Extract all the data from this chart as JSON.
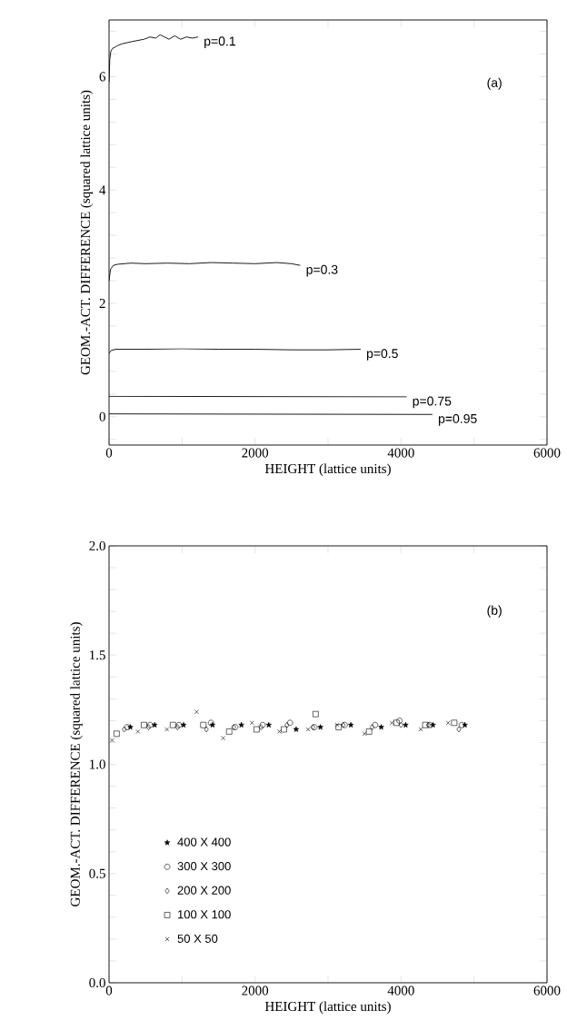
{
  "chart_data": [
    {
      "type": "line",
      "xlabel": "HEIGHT (lattice units)",
      "ylabel": "GEOM.-ACT. DIFFERENCE (squared lattice units)",
      "xlim": [
        0,
        6000
      ],
      "ylim": [
        -0.5,
        7
      ],
      "xticks": [
        0,
        {
          "value": 1000,
          "label": null
        },
        2000,
        {
          "value": 3000,
          "label": null
        },
        4000,
        {
          "value": 5000,
          "label": null
        },
        6000
      ],
      "yticks": [
        {
          "value": -0.4,
          "label": null
        },
        0,
        {
          "value": 0.4,
          "label": null
        },
        {
          "value": 0.8,
          "label": null
        },
        {
          "value": 1.2,
          "label": null
        },
        {
          "value": 1.6,
          "label": null
        },
        2,
        {
          "value": 2.4,
          "label": null
        },
        {
          "value": 2.8,
          "label": null
        },
        {
          "value": 3.2,
          "label": null
        },
        {
          "value": 3.6,
          "label": null
        },
        4,
        {
          "value": 4.4,
          "label": null
        },
        {
          "value": 4.8,
          "label": null
        },
        {
          "value": 5.2,
          "label": null
        },
        {
          "value": 5.6,
          "label": null
        },
        6,
        {
          "value": 6.4,
          "label": null
        },
        {
          "value": 6.8,
          "label": null
        }
      ],
      "annotations": [
        "(a)"
      ],
      "series": [
        {
          "name": "p=0.1",
          "color": "#000000",
          "x": [
            0,
            10,
            25,
            50,
            80,
            120,
            180,
            250,
            320,
            400,
            480,
            560,
            640,
            700,
            760,
            820,
            900,
            980,
            1060,
            1140,
            1220
          ],
          "values": [
            5.9,
            6.3,
            6.45,
            6.5,
            6.52,
            6.55,
            6.58,
            6.6,
            6.62,
            6.64,
            6.66,
            6.7,
            6.68,
            6.74,
            6.7,
            6.66,
            6.72,
            6.66,
            6.7,
            6.68,
            6.7
          ]
        },
        {
          "name": "p=0.3",
          "color": "#000000",
          "x": [
            0,
            20,
            60,
            120,
            300,
            500,
            800,
            1100,
            1400,
            1700,
            2000,
            2300,
            2500,
            2620
          ],
          "values": [
            2.4,
            2.6,
            2.67,
            2.69,
            2.71,
            2.7,
            2.71,
            2.7,
            2.72,
            2.71,
            2.7,
            2.72,
            2.7,
            2.67
          ]
        },
        {
          "name": "p=0.5",
          "color": "#000000",
          "x": [
            0,
            30,
            100,
            500,
            1000,
            1500,
            2000,
            2500,
            3000,
            3446
          ],
          "values": [
            1.12,
            1.17,
            1.19,
            1.19,
            1.2,
            1.19,
            1.19,
            1.18,
            1.18,
            1.19
          ]
        },
        {
          "name": "p=0.75",
          "color": "#000000",
          "x": [
            0,
            4077
          ],
          "values": [
            0.36,
            0.35
          ]
        },
        {
          "name": "p=0.95",
          "color": "#000000",
          "x": [
            0,
            4430
          ],
          "values": [
            0.05,
            0.04
          ]
        }
      ]
    },
    {
      "type": "scatter",
      "xlabel": "HEIGHT (lattice units)",
      "ylabel": "GEOM.-ACT. DIFFERENCE (squared lattice units)",
      "xlim": [
        0,
        6000
      ],
      "ylim": [
        0,
        2
      ],
      "legend": "bottom left",
      "xticks": [
        0,
        {
          "value": 1000,
          "label": null
        },
        2000,
        {
          "value": 3000,
          "label": null
        },
        4000,
        {
          "value": 5000,
          "label": null
        },
        6000
      ],
      "yticks": [
        {
          "value": 0,
          "label": "0.0"
        },
        {
          "value": 0.1,
          "label": null
        },
        {
          "value": 0.2,
          "label": null
        },
        {
          "value": 0.3,
          "label": null
        },
        {
          "value": 0.4,
          "label": null
        },
        0.5,
        {
          "value": 0.6,
          "label": null
        },
        {
          "value": 0.7,
          "label": null
        },
        {
          "value": 0.8,
          "label": null
        },
        {
          "value": 0.9,
          "label": null
        },
        {
          "value": 1,
          "label": "1.0"
        },
        {
          "value": 1.1,
          "label": null
        },
        {
          "value": 1.2,
          "label": null
        },
        {
          "value": 1.3,
          "label": null
        },
        {
          "value": 1.4,
          "label": null
        },
        1.5,
        {
          "value": 1.6,
          "label": null
        },
        {
          "value": 1.7,
          "label": null
        },
        {
          "value": 1.8,
          "label": null
        },
        {
          "value": 1.9,
          "label": null
        },
        {
          "value": 2,
          "label": "2.0"
        }
      ],
      "annotations": [
        "(b)"
      ],
      "series": [
        {
          "name": "400 X 400",
          "color": "#000000",
          "marker": "star",
          "x": [
            292,
            625,
            1021,
            1417,
            1813,
            2188,
            2563,
            2896,
            3313,
            3729,
            4063,
            4438,
            4875
          ],
          "values": [
            1.17,
            1.18,
            1.18,
            1.18,
            1.18,
            1.18,
            1.16,
            1.17,
            1.18,
            1.17,
            1.18,
            1.18,
            1.18
          ]
        },
        {
          "name": "300 X 300",
          "color": "#000000",
          "marker": "circle",
          "x": [
            250,
            563,
            958,
            1396,
            1729,
            2104,
            2479,
            2813,
            3229,
            3646,
            3979,
            4396,
            4833
          ],
          "values": [
            1.17,
            1.18,
            1.18,
            1.19,
            1.17,
            1.18,
            1.19,
            1.17,
            1.18,
            1.18,
            1.2,
            1.18,
            1.18
          ]
        },
        {
          "name": "200 X 200",
          "color": "#000000",
          "marker": "diamond",
          "x": [
            208,
            542,
            938,
            1333,
            1708,
            2083,
            2438,
            2792,
            3208,
            3604,
            4000,
            4375,
            4792
          ],
          "values": [
            1.16,
            1.17,
            1.17,
            1.16,
            1.17,
            1.17,
            1.18,
            1.17,
            1.18,
            1.17,
            1.18,
            1.18,
            1.16
          ]
        },
        {
          "name": "100 X 100",
          "color": "#000000",
          "marker": "square",
          "x": [
            104,
            479,
            875,
            1292,
            1646,
            2021,
            2396,
            2830,
            3146,
            3562,
            3938,
            4333,
            4729
          ],
          "values": [
            1.14,
            1.18,
            1.18,
            1.18,
            1.15,
            1.16,
            1.16,
            1.23,
            1.17,
            1.15,
            1.19,
            1.18,
            1.19
          ]
        },
        {
          "name": "50 X 50",
          "color": "#000000",
          "marker": "cross",
          "x": [
            42,
            396,
            792,
            1200,
            1563,
            1958,
            2333,
            2729,
            3125,
            3500,
            3875,
            4271,
            4646
          ],
          "values": [
            1.11,
            1.15,
            1.16,
            1.24,
            1.12,
            1.19,
            1.15,
            1.16,
            1.18,
            1.14,
            1.19,
            1.16,
            1.19
          ]
        }
      ]
    }
  ]
}
